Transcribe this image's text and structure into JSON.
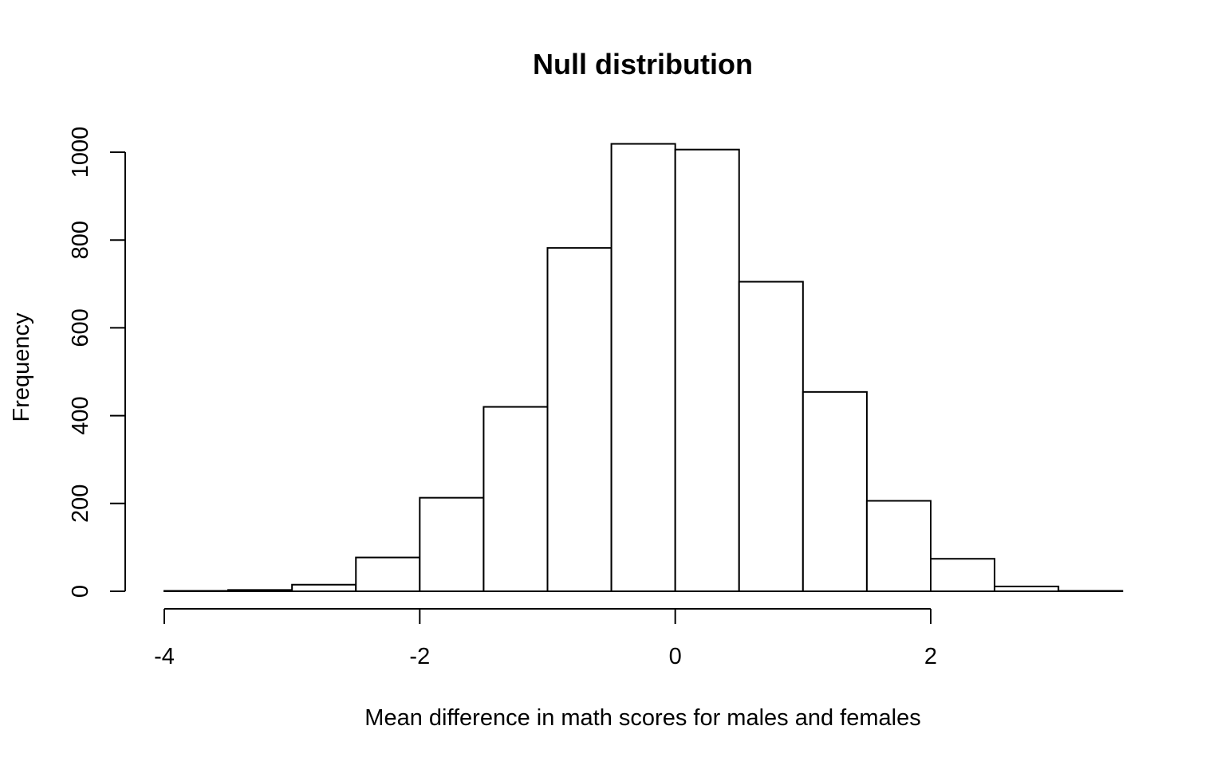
{
  "chart_data": {
    "type": "bar",
    "title": "Null distribution",
    "xlabel": "Mean difference in math scores for males and females",
    "ylabel": "Frequency",
    "xlim": [
      -4,
      3.5
    ],
    "ylim": [
      0,
      1020
    ],
    "x_ticks": [
      -4,
      -2,
      0,
      2
    ],
    "x_tick_labels": [
      "-4",
      "-2",
      "0",
      "2"
    ],
    "y_ticks": [
      0,
      200,
      400,
      600,
      800,
      1000
    ],
    "y_tick_labels": [
      "0",
      "200",
      "400",
      "600",
      "800",
      "1000"
    ],
    "bin_edges": [
      -4,
      -3.5,
      -3,
      -2.5,
      -2,
      -1.5,
      -1,
      -0.5,
      0,
      0.5,
      1,
      1.5,
      2,
      2.5,
      3,
      3.5
    ],
    "values": [
      1,
      3,
      15,
      77,
      213,
      420,
      782,
      1019,
      1006,
      705,
      454,
      206,
      74,
      11,
      1
    ],
    "grid": false,
    "colors": {
      "bar_fill": "#ffffff",
      "bar_stroke": "#000000"
    }
  }
}
